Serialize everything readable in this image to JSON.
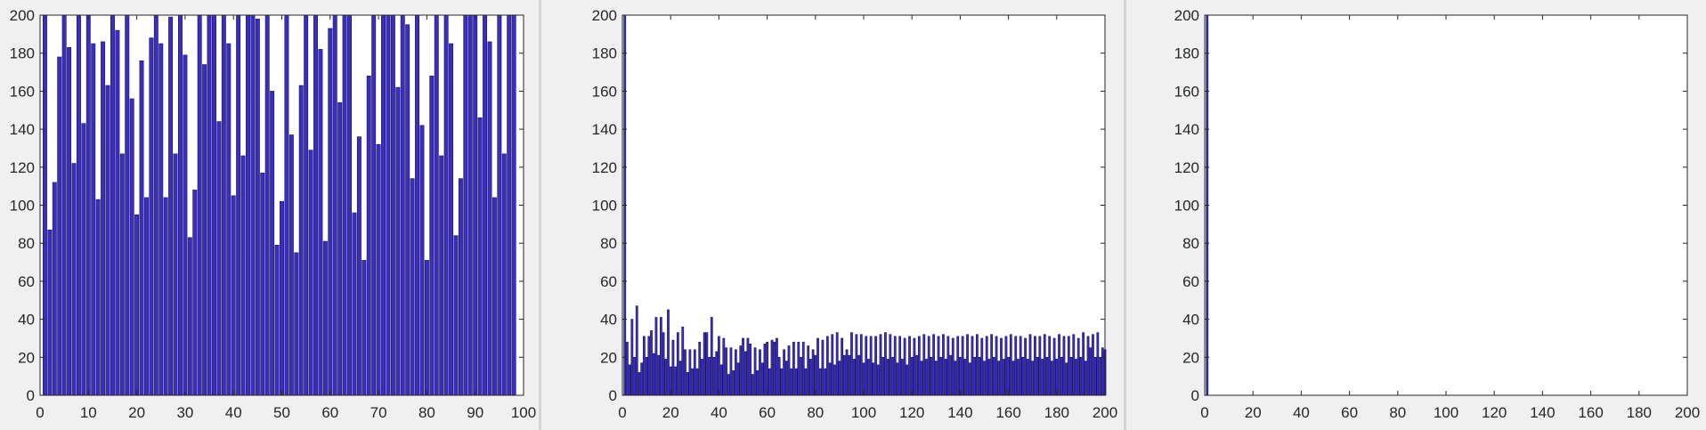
{
  "colors": {
    "bar_fill": "#3b2ebd",
    "bar_edge": "#1a1560",
    "axis": "#262626",
    "plot_bg": "#ffffff",
    "figure_bg": "#f0f0f0"
  },
  "chart_data": [
    {
      "type": "bar",
      "title": "",
      "xlabel": "",
      "ylabel": "",
      "xlim": [
        0,
        100
      ],
      "ylim": [
        0,
        200
      ],
      "xticks": [
        "0",
        "10",
        "20",
        "30",
        "40",
        "50",
        "60",
        "70",
        "80",
        "90",
        "100"
      ],
      "yticks": [
        "0",
        "20",
        "40",
        "60",
        "80",
        "100",
        "120",
        "140",
        "160",
        "180",
        "200"
      ],
      "grid": false,
      "x_start": 1,
      "values": [
        200,
        87,
        112,
        178,
        200,
        183,
        122,
        200,
        143,
        200,
        185,
        103,
        186,
        163,
        200,
        192,
        127,
        200,
        156,
        95,
        176,
        104,
        188,
        200,
        185,
        104,
        199,
        127,
        200,
        179,
        83,
        108,
        200,
        174,
        200,
        200,
        144,
        200,
        185,
        105,
        200,
        126,
        200,
        200,
        198,
        117,
        200,
        160,
        79,
        102,
        200,
        137,
        75,
        163,
        200,
        129,
        200,
        182,
        81,
        193,
        200,
        154,
        200,
        200,
        96,
        136,
        71,
        168,
        200,
        132,
        200,
        200,
        200,
        162,
        200,
        195,
        114,
        200,
        142,
        71,
        168,
        200,
        126,
        200,
        185,
        84,
        114,
        200,
        200,
        200,
        146,
        200,
        186,
        104,
        200,
        127,
        200,
        200
      ]
    },
    {
      "type": "bar",
      "title": "",
      "xlabel": "",
      "ylabel": "",
      "xlim": [
        0,
        200
      ],
      "ylim": [
        0,
        200
      ],
      "xticks": [
        "0",
        "20",
        "40",
        "60",
        "80",
        "100",
        "120",
        "140",
        "160",
        "180",
        "200"
      ],
      "yticks": [
        "0",
        "20",
        "40",
        "60",
        "80",
        "100",
        "120",
        "140",
        "160",
        "180",
        "200"
      ],
      "grid": false,
      "x_start": 1,
      "values": [
        200,
        28,
        16,
        40,
        20,
        47,
        12,
        17,
        31,
        20,
        31,
        34,
        22,
        41,
        21,
        41,
        33,
        19,
        45,
        15,
        29,
        15,
        33,
        18,
        36,
        24,
        12,
        24,
        14,
        24,
        14,
        28,
        19,
        33,
        33,
        20,
        41,
        20,
        23,
        31,
        16,
        30,
        25,
        11,
        25,
        13,
        24,
        17,
        26,
        30,
        23,
        30,
        27,
        11,
        25,
        13,
        24,
        17,
        27,
        28,
        14,
        29,
        28,
        30,
        20,
        14,
        24,
        18,
        26,
        14,
        28,
        14,
        28,
        20,
        28,
        14,
        26,
        19,
        24,
        21,
        30,
        14,
        29,
        14,
        31,
        17,
        32,
        16,
        33,
        18,
        30,
        21,
        24,
        21,
        33,
        19,
        32,
        21,
        32,
        17,
        31,
        19,
        31,
        17,
        31,
        16,
        32,
        20,
        33,
        19,
        32,
        20,
        31,
        17,
        31,
        19,
        30,
        16,
        31,
        20,
        30,
        21,
        31,
        18,
        32,
        19,
        31,
        20,
        32,
        18,
        31,
        20,
        32,
        19,
        31,
        21,
        30,
        18,
        31,
        20,
        31,
        19,
        32,
        17,
        31,
        20,
        32,
        20,
        30,
        18,
        31,
        19,
        32,
        20,
        31,
        18,
        30,
        19,
        31,
        20,
        32,
        18,
        31,
        19,
        31,
        20,
        30,
        19,
        32,
        18,
        31,
        20,
        31,
        19,
        32,
        20,
        31,
        18,
        30,
        19,
        32,
        20,
        31,
        17,
        31,
        20,
        32,
        19,
        30,
        20,
        33,
        18,
        31,
        25,
        32,
        20,
        33,
        20,
        25,
        24
      ]
    },
    {
      "type": "bar",
      "title": "",
      "xlabel": "",
      "ylabel": "",
      "xlim": [
        0,
        200
      ],
      "ylim": [
        0,
        200
      ],
      "xticks": [
        "0",
        "20",
        "40",
        "60",
        "80",
        "100",
        "120",
        "140",
        "160",
        "180",
        "200"
      ],
      "yticks": [
        "0",
        "20",
        "40",
        "60",
        "80",
        "100",
        "120",
        "140",
        "160",
        "180",
        "200"
      ],
      "grid": false,
      "x_start": 1,
      "values": [
        200
      ]
    }
  ]
}
